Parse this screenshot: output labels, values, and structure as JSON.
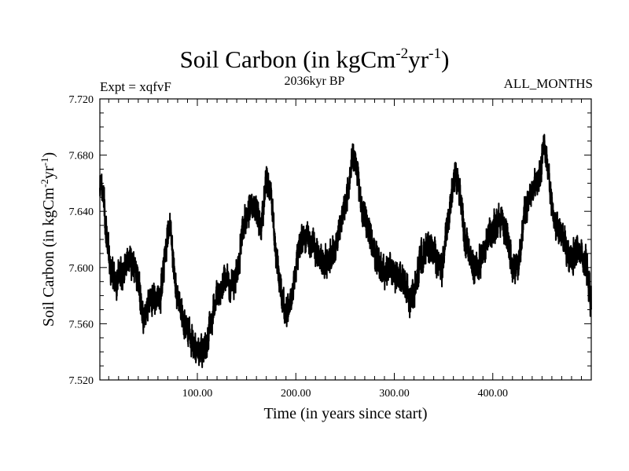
{
  "chart_data": {
    "type": "line",
    "title_main": "Soil Carbon (in kgCm",
    "title_sup1": "-2",
    "title_mid": "yr",
    "title_sup2": "-1",
    "title_end": ")",
    "subtitle": "2036kyr BP",
    "left_annotation": "Expt = xqfvF",
    "right_annotation": "ALL_MONTHS",
    "xlabel": "Time (in years since start)",
    "ylabel_main": "Soil Carbon (in kgCm",
    "ylabel_sup1": "-2",
    "ylabel_mid": "yr",
    "ylabel_sup2": "-1",
    "ylabel_end": ")",
    "xlim": [
      1,
      500
    ],
    "ylim": [
      7.52,
      7.72
    ],
    "x_ticks": [
      100,
      200,
      300,
      400
    ],
    "x_tick_labels": [
      "100.00",
      "200.00",
      "300.00",
      "400.00"
    ],
    "y_ticks": [
      7.52,
      7.56,
      7.6,
      7.64,
      7.68,
      7.72
    ],
    "y_tick_labels": [
      "7.520",
      "7.560",
      "7.600",
      "7.640",
      "7.680",
      "7.720"
    ],
    "series": [
      {
        "name": "Soil Carbon",
        "color": "#000000",
        "x_knots": [
          1,
          5,
          8,
          12,
          18,
          25,
          32,
          40,
          45,
          48,
          55,
          62,
          68,
          72,
          78,
          84,
          90,
          95,
          100,
          105,
          110,
          115,
          120,
          128,
          135,
          142,
          146,
          152,
          158,
          165,
          170,
          175,
          180,
          185,
          190,
          196,
          200,
          205,
          212,
          220,
          228,
          236,
          244,
          252,
          258,
          262,
          266,
          272,
          280,
          288,
          295,
          302,
          310,
          316,
          322,
          326,
          332,
          340,
          348,
          356,
          362,
          366,
          372,
          380,
          388,
          396,
          402,
          408,
          414,
          420,
          426,
          432,
          440,
          448,
          452,
          456,
          462,
          470,
          478,
          486,
          492,
          496,
          500
        ],
        "y_knots": [
          7.665,
          7.648,
          7.618,
          7.6,
          7.59,
          7.598,
          7.607,
          7.592,
          7.56,
          7.57,
          7.58,
          7.576,
          7.612,
          7.632,
          7.585,
          7.565,
          7.555,
          7.545,
          7.54,
          7.542,
          7.548,
          7.565,
          7.58,
          7.59,
          7.585,
          7.6,
          7.628,
          7.64,
          7.645,
          7.63,
          7.662,
          7.655,
          7.608,
          7.585,
          7.565,
          7.578,
          7.6,
          7.62,
          7.622,
          7.612,
          7.603,
          7.608,
          7.625,
          7.65,
          7.68,
          7.675,
          7.645,
          7.632,
          7.61,
          7.598,
          7.6,
          7.592,
          7.59,
          7.578,
          7.585,
          7.605,
          7.615,
          7.61,
          7.598,
          7.64,
          7.667,
          7.655,
          7.62,
          7.6,
          7.605,
          7.625,
          7.63,
          7.635,
          7.625,
          7.6,
          7.6,
          7.64,
          7.655,
          7.665,
          7.69,
          7.672,
          7.63,
          7.625,
          7.605,
          7.615,
          7.605,
          7.6,
          7.572
        ],
        "noise_amplitude": 0.012,
        "samples_per_year": 12
      }
    ]
  }
}
